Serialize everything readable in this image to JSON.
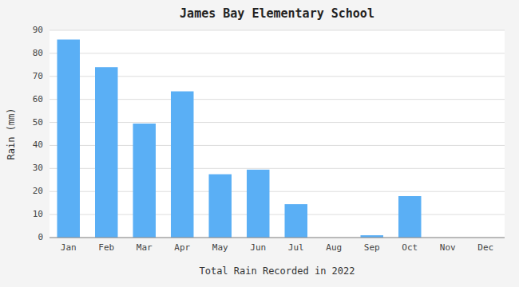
{
  "chart_data": {
    "type": "bar",
    "title": "James Bay Elementary School",
    "xlabel": "Total Rain Recorded in 2022",
    "ylabel": "Rain (mm)",
    "categories": [
      "Jan",
      "Feb",
      "Mar",
      "Apr",
      "May",
      "Jun",
      "Jul",
      "Aug",
      "Sep",
      "Oct",
      "Nov",
      "Dec"
    ],
    "values": [
      86,
      74,
      49.5,
      63.5,
      27.5,
      29.5,
      14.5,
      0,
      1,
      18,
      0,
      0
    ],
    "color": "#5aaff5",
    "ylim": [
      0,
      90
    ],
    "yticks": [
      0,
      10,
      20,
      30,
      40,
      50,
      60,
      70,
      80,
      90
    ],
    "grid": true
  }
}
